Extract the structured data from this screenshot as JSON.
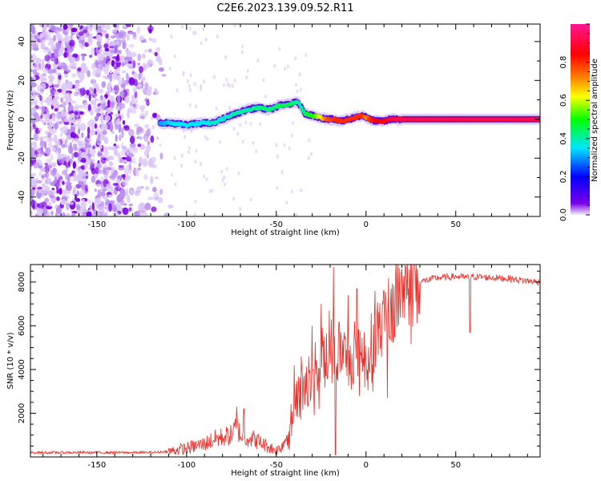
{
  "figure_title": "C2E6.2023.139.09.52.R11",
  "chart_data": [
    {
      "type": "heatmap",
      "panel": "spectrogram",
      "title": "C2E6.2023.139.09.52.R11",
      "xlabel": "Height of straight line (km)",
      "ylabel": "Frequency (Hz)",
      "xlim": [
        -187,
        97
      ],
      "ylim": [
        -50,
        49
      ],
      "x_ticks": [
        -150,
        -100,
        -50,
        0,
        50
      ],
      "y_ticks": [
        -40,
        -20,
        0,
        20,
        40
      ],
      "x_tick_labels": [
        "-150",
        "-100",
        "-50",
        "0",
        "50"
      ],
      "y_tick_labels": [
        "-40",
        "-20",
        "0",
        "20",
        "40"
      ],
      "noise_region_x": [
        -187,
        -108
      ],
      "signal_trace": {
        "x": [
          -115,
          -108,
          -100,
          -92,
          -85,
          -78,
          -72,
          -66,
          -60,
          -54,
          -48,
          -42,
          -38,
          -36,
          -34,
          -30,
          -26,
          -22,
          -18,
          -14,
          -10,
          -6,
          -2,
          0,
          2,
          6,
          10,
          14,
          20,
          40,
          60,
          80,
          97
        ],
        "freq_hz": [
          -2,
          -2,
          -3,
          -2,
          -2,
          1,
          3,
          5,
          6,
          5,
          7,
          8,
          9,
          6,
          3,
          2,
          1,
          0,
          0,
          -1,
          0,
          1,
          2,
          1,
          0,
          -1,
          -1,
          0,
          0,
          0,
          0,
          0,
          0
        ],
        "amplitude": [
          0.3,
          0.35,
          0.35,
          0.35,
          0.38,
          0.38,
          0.4,
          0.4,
          0.42,
          0.42,
          0.45,
          0.45,
          0.4,
          0.4,
          0.45,
          0.5,
          0.6,
          0.75,
          0.8,
          0.8,
          0.8,
          0.8,
          0.8,
          0.7,
          0.8,
          0.85,
          0.85,
          0.9,
          0.9,
          0.9,
          0.9,
          0.9,
          0.9
        ]
      },
      "colorbar": {
        "label": "Normalized spectral amplitude",
        "range": [
          0.0,
          1.0
        ],
        "ticks": [
          0.0,
          0.2,
          0.4,
          0.6,
          0.8
        ],
        "tick_labels": [
          "0.0",
          "0.2",
          "0.4",
          "0.6",
          "0.8"
        ],
        "colors": [
          "#f4eefb",
          "#7a00e6",
          "#0000ff",
          "#00e5ff",
          "#00ff00",
          "#ffff00",
          "#ff8000",
          "#ff0000",
          "#ff1493"
        ]
      }
    },
    {
      "type": "line",
      "panel": "snr",
      "xlabel": "Height of straight line (km)",
      "ylabel": "SNR (10 * v/v)",
      "xlim": [
        -187,
        97
      ],
      "ylim": [
        0,
        8800
      ],
      "x_ticks": [
        -150,
        -100,
        -50,
        0,
        50
      ],
      "y_ticks": [
        2000,
        4000,
        6000,
        8000
      ],
      "x_tick_labels": [
        "-150",
        "-100",
        "-50",
        "0",
        "50"
      ],
      "y_tick_labels": [
        "2000",
        "4000",
        "6000",
        "8000"
      ],
      "line_color": "#e8302a",
      "series": [
        {
          "name": "SNR",
          "x": [
            -187,
            -160,
            -140,
            -120,
            -110,
            -100,
            -95,
            -90,
            -85,
            -80,
            -75,
            -72,
            -70,
            -68,
            -65,
            -60,
            -55,
            -50,
            -47,
            -45,
            -42,
            -40,
            -38,
            -36,
            -34,
            -32,
            -30,
            -28,
            -25,
            -22,
            -20,
            -18,
            -16,
            -14,
            -12,
            -10,
            -8,
            -6,
            -4,
            -2,
            0,
            2,
            4,
            6,
            8,
            10,
            12,
            14,
            16,
            18,
            20,
            22,
            25,
            30,
            35,
            40,
            50,
            58,
            60,
            70,
            80,
            90,
            97
          ],
          "y": [
            200,
            200,
            200,
            200,
            250,
            400,
            500,
            600,
            800,
            900,
            1000,
            1400,
            1000,
            900,
            900,
            700,
            500,
            300,
            500,
            800,
            1400,
            2000,
            2500,
            3000,
            3500,
            3800,
            3600,
            4200,
            4400,
            4800,
            5000,
            4600,
            4800,
            5000,
            4600,
            4400,
            4600,
            5200,
            5200,
            5000,
            4400,
            4800,
            5200,
            5400,
            5800,
            6200,
            6600,
            6800,
            7000,
            7400,
            7600,
            7800,
            7900,
            8000,
            8100,
            8200,
            8250,
            8200,
            8250,
            8200,
            8150,
            8050,
            8000
          ]
        }
      ],
      "annotated_spikes": {
        "x": [
          -72,
          -68,
          -40,
          -36,
          -30,
          -25,
          -18,
          -17,
          -10,
          -5,
          0,
          5,
          10,
          12,
          20,
          58
        ],
        "y": [
          2300,
          2200,
          4200,
          4600,
          6000,
          7000,
          8700,
          100,
          7400,
          7700,
          4500,
          7600,
          7600,
          2700,
          8600,
          5700
        ]
      }
    }
  ]
}
